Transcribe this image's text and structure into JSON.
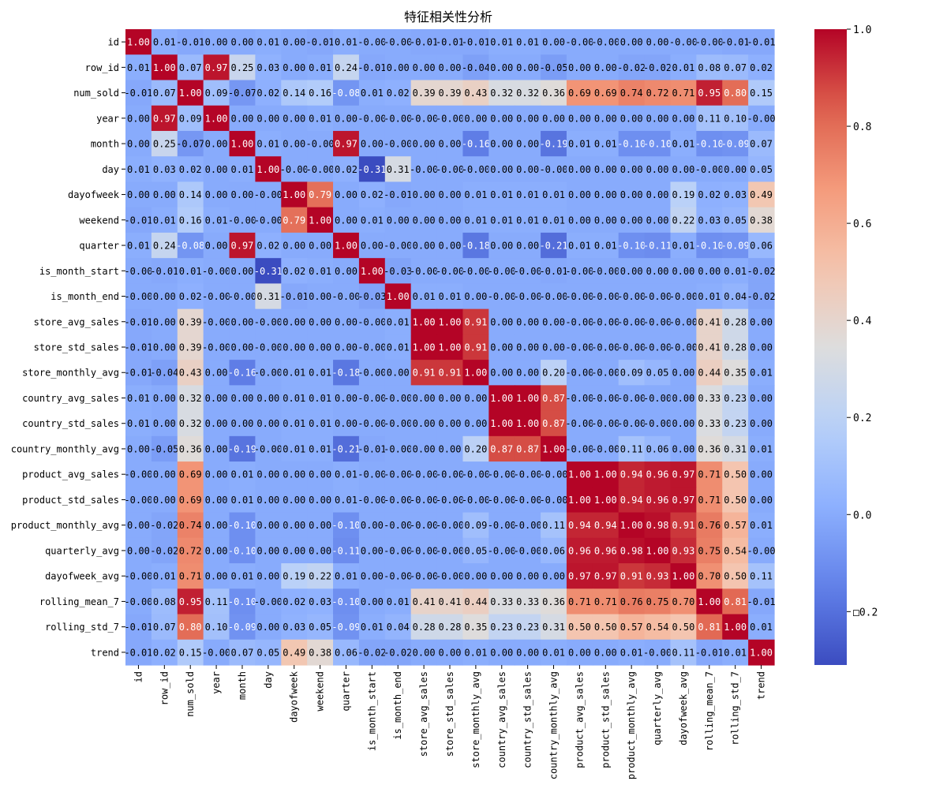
{
  "chart_data": {
    "type": "heatmap",
    "title": "特征相关性分析",
    "labels": [
      "id",
      "row_id",
      "num_sold",
      "year",
      "month",
      "day",
      "dayofweek",
      "weekend",
      "quarter",
      "is_month_start",
      "is_month_end",
      "store_avg_sales",
      "store_std_sales",
      "store_monthly_avg",
      "country_avg_sales",
      "country_std_sales",
      "country_monthly_avg",
      "product_avg_sales",
      "product_std_sales",
      "product_monthly_avg",
      "quarterly_avg",
      "dayofweek_avg",
      "rolling_mean_7",
      "rolling_std_7",
      "trend"
    ],
    "matrix": [
      [
        1.0,
        0.01,
        -0.01,
        0.0,
        0.0,
        0.01,
        0.0,
        -0.01,
        0.01,
        -0.0,
        -0.0,
        -0.01,
        -0.01,
        -0.01,
        0.01,
        0.01,
        0.0,
        -0.0,
        -0.0,
        0.0,
        0.0,
        -0.0,
        -0.0,
        -0.01,
        -0.01
      ],
      [
        0.01,
        1.0,
        0.07,
        0.97,
        0.25,
        0.03,
        0.0,
        0.01,
        0.24,
        -0.01,
        0.0,
        0.0,
        0.0,
        -0.04,
        0.0,
        0.0,
        -0.05,
        0.0,
        0.0,
        -0.02,
        -0.02,
        0.01,
        0.08,
        0.07,
        0.02
      ],
      [
        -0.01,
        0.07,
        1.0,
        0.09,
        -0.07,
        0.02,
        0.14,
        0.16,
        -0.08,
        0.01,
        0.02,
        0.39,
        0.39,
        0.43,
        0.32,
        0.32,
        0.36,
        0.69,
        0.69,
        0.74,
        0.72,
        0.71,
        0.95,
        0.8,
        0.15
      ],
      [
        0.0,
        0.97,
        0.09,
        1.0,
        0.0,
        0.0,
        0.0,
        0.01,
        0.0,
        -0.0,
        -0.0,
        -0.0,
        -0.0,
        0.0,
        0.0,
        0.0,
        0.0,
        0.0,
        0.0,
        0.0,
        0.0,
        0.0,
        0.11,
        0.1,
        -0.0
      ],
      [
        0.0,
        0.25,
        -0.07,
        0.0,
        1.0,
        0.01,
        0.0,
        -0.0,
        0.97,
        0.0,
        -0.0,
        0.0,
        0.0,
        -0.16,
        0.0,
        0.0,
        -0.19,
        0.01,
        0.01,
        -0.1,
        -0.1,
        0.01,
        -0.1,
        -0.09,
        0.07
      ],
      [
        0.01,
        0.03,
        0.02,
        0.0,
        0.01,
        1.0,
        -0.0,
        -0.0,
        0.02,
        -0.31,
        0.31,
        -0.0,
        -0.0,
        -0.0,
        0.0,
        0.0,
        -0.0,
        0.0,
        0.0,
        0.0,
        0.0,
        0.0,
        -0.0,
        0.0,
        0.05
      ],
      [
        0.0,
        0.0,
        0.14,
        0.0,
        0.0,
        -0.0,
        1.0,
        0.79,
        0.0,
        0.02,
        -0.01,
        0.0,
        0.0,
        0.01,
        0.01,
        0.01,
        0.01,
        0.0,
        0.0,
        0.0,
        0.0,
        0.19,
        0.02,
        0.03,
        0.49
      ],
      [
        -0.01,
        0.01,
        0.16,
        0.01,
        -0.0,
        -0.0,
        0.79,
        1.0,
        0.0,
        0.01,
        0.0,
        0.0,
        0.0,
        0.01,
        0.01,
        0.01,
        0.01,
        0.0,
        0.0,
        0.0,
        0.0,
        0.22,
        0.03,
        0.05,
        0.38
      ],
      [
        0.01,
        0.24,
        -0.08,
        0.0,
        0.97,
        0.02,
        0.0,
        0.0,
        1.0,
        0.0,
        -0.0,
        0.0,
        0.0,
        -0.18,
        0.0,
        0.0,
        -0.21,
        0.01,
        0.01,
        -0.1,
        -0.11,
        0.01,
        -0.1,
        -0.09,
        0.06
      ],
      [
        -0.0,
        -0.01,
        0.01,
        -0.0,
        0.0,
        -0.31,
        0.02,
        0.01,
        0.0,
        1.0,
        -0.03,
        -0.0,
        -0.0,
        -0.0,
        -0.0,
        -0.0,
        -0.01,
        -0.0,
        -0.0,
        0.0,
        0.0,
        0.0,
        0.0,
        0.01,
        -0.02
      ],
      [
        -0.0,
        0.0,
        0.02,
        -0.0,
        -0.0,
        0.31,
        -0.01,
        0.0,
        -0.0,
        -0.03,
        1.0,
        0.01,
        0.01,
        0.0,
        -0.0,
        -0.0,
        -0.0,
        -0.0,
        -0.0,
        -0.0,
        -0.0,
        -0.0,
        0.01,
        0.04,
        -0.02
      ],
      [
        -0.01,
        0.0,
        0.39,
        -0.0,
        0.0,
        -0.0,
        0.0,
        0.0,
        0.0,
        -0.0,
        0.01,
        1.0,
        1.0,
        0.91,
        0.0,
        0.0,
        0.0,
        -0.0,
        -0.0,
        -0.0,
        -0.0,
        -0.0,
        0.41,
        0.28,
        0.0
      ],
      [
        -0.01,
        0.0,
        0.39,
        -0.0,
        0.0,
        -0.0,
        0.0,
        0.0,
        0.0,
        -0.0,
        0.01,
        1.0,
        1.0,
        0.91,
        0.0,
        0.0,
        0.0,
        -0.0,
        -0.0,
        -0.0,
        -0.0,
        -0.0,
        0.41,
        0.28,
        0.0
      ],
      [
        -0.01,
        -0.04,
        0.43,
        0.0,
        -0.16,
        -0.0,
        0.01,
        0.01,
        -0.18,
        -0.0,
        0.0,
        0.91,
        0.91,
        1.0,
        0.0,
        0.0,
        0.2,
        -0.0,
        -0.0,
        0.09,
        0.05,
        0.0,
        0.44,
        0.35,
        0.01
      ],
      [
        0.01,
        0.0,
        0.32,
        0.0,
        0.0,
        0.0,
        0.01,
        0.01,
        0.0,
        -0.0,
        -0.0,
        0.0,
        0.0,
        0.0,
        1.0,
        1.0,
        0.87,
        -0.0,
        -0.0,
        -0.0,
        -0.0,
        0.0,
        0.33,
        0.23,
        0.0
      ],
      [
        0.01,
        0.0,
        0.32,
        0.0,
        0.0,
        0.0,
        0.01,
        0.01,
        0.0,
        -0.0,
        -0.0,
        0.0,
        0.0,
        0.0,
        1.0,
        1.0,
        0.87,
        -0.0,
        -0.0,
        -0.0,
        -0.0,
        0.0,
        0.33,
        0.23,
        0.0
      ],
      [
        0.0,
        -0.05,
        0.36,
        0.0,
        -0.19,
        -0.0,
        0.01,
        0.01,
        -0.21,
        -0.01,
        -0.0,
        0.0,
        0.0,
        0.2,
        0.87,
        0.87,
        1.0,
        -0.0,
        -0.0,
        0.11,
        0.06,
        0.0,
        0.36,
        0.31,
        0.01
      ],
      [
        -0.0,
        0.0,
        0.69,
        0.0,
        0.01,
        0.0,
        0.0,
        0.0,
        0.01,
        -0.0,
        -0.0,
        -0.0,
        -0.0,
        -0.0,
        -0.0,
        -0.0,
        -0.0,
        1.0,
        1.0,
        0.94,
        0.96,
        0.97,
        0.71,
        0.5,
        0.0
      ],
      [
        -0.0,
        0.0,
        0.69,
        0.0,
        0.01,
        0.0,
        0.0,
        0.0,
        0.01,
        -0.0,
        -0.0,
        -0.0,
        -0.0,
        -0.0,
        -0.0,
        -0.0,
        -0.0,
        1.0,
        1.0,
        0.94,
        0.96,
        0.97,
        0.71,
        0.5,
        0.0
      ],
      [
        0.0,
        -0.02,
        0.74,
        0.0,
        -0.1,
        0.0,
        0.0,
        0.0,
        -0.1,
        0.0,
        -0.0,
        -0.0,
        -0.0,
        0.09,
        -0.0,
        -0.0,
        0.11,
        0.94,
        0.94,
        1.0,
        0.98,
        0.91,
        0.76,
        0.57,
        0.01
      ],
      [
        0.0,
        -0.02,
        0.72,
        0.0,
        -0.1,
        0.0,
        0.0,
        0.0,
        -0.11,
        0.0,
        -0.0,
        -0.0,
        -0.0,
        0.05,
        -0.0,
        -0.0,
        0.06,
        0.96,
        0.96,
        0.98,
        1.0,
        0.93,
        0.75,
        0.54,
        -0.0
      ],
      [
        -0.0,
        0.01,
        0.71,
        0.0,
        0.01,
        0.0,
        0.19,
        0.22,
        0.01,
        0.0,
        -0.0,
        -0.0,
        -0.0,
        0.0,
        0.0,
        0.0,
        0.0,
        0.97,
        0.97,
        0.91,
        0.93,
        1.0,
        0.7,
        0.5,
        0.11
      ],
      [
        -0.0,
        0.08,
        0.95,
        0.11,
        -0.1,
        -0.0,
        0.02,
        0.03,
        -0.1,
        0.0,
        0.01,
        0.41,
        0.41,
        0.44,
        0.33,
        0.33,
        0.36,
        0.71,
        0.71,
        0.76,
        0.75,
        0.7,
        1.0,
        0.81,
        -0.01
      ],
      [
        -0.01,
        0.07,
        0.8,
        0.1,
        -0.09,
        0.0,
        0.03,
        0.05,
        -0.09,
        0.01,
        0.04,
        0.28,
        0.28,
        0.35,
        0.23,
        0.23,
        0.31,
        0.5,
        0.5,
        0.57,
        0.54,
        0.5,
        0.81,
        1.0,
        0.01
      ],
      [
        -0.01,
        0.02,
        0.15,
        -0.0,
        0.07,
        0.05,
        0.49,
        0.38,
        0.06,
        -0.02,
        -0.02,
        0.0,
        0.0,
        0.01,
        0.0,
        0.0,
        0.01,
        0.0,
        0.0,
        0.01,
        -0.0,
        0.11,
        -0.01,
        0.01,
        1.0
      ]
    ],
    "vmin": -0.31,
    "vmax": 1.0,
    "colormap": "coolwarm",
    "colorbar_ticks": [
      1.0,
      0.8,
      0.6,
      0.4,
      0.2,
      0.0
    ],
    "colorbar_tick_labels": [
      "1.0",
      "0.8",
      "0.6",
      "0.4",
      "0.2",
      "0.0"
    ],
    "colorbar_neg_tick": -0.2,
    "colorbar_neg_tick_label": "□0.2",
    "annot_format": "0.00",
    "grid": false,
    "legend": "colorbar-right"
  }
}
